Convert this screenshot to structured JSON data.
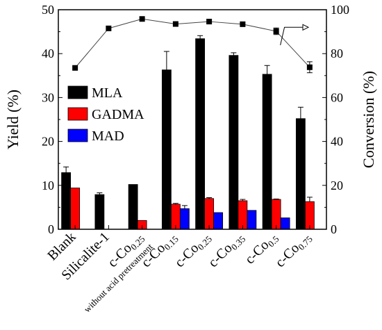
{
  "chart_data": {
    "type": "bar",
    "ylabel": "Yield (%)",
    "y2label": "Conversion (%)",
    "ylim": [
      0,
      50
    ],
    "y2lim": [
      0,
      100
    ],
    "yticks": [
      "0",
      "10",
      "20",
      "30",
      "40",
      "50"
    ],
    "y2ticks": [
      "0",
      "20",
      "40",
      "60",
      "80",
      "100"
    ],
    "categories": [
      {
        "main": "Blank",
        "sub": "",
        "tail": "",
        "line2": ""
      },
      {
        "main": "Silicalite-1",
        "sub": "",
        "tail": "",
        "line2": ""
      },
      {
        "main": "c-Co",
        "sub": "0.25",
        "tail": "",
        "line2": "without acid pretreatment"
      },
      {
        "main": "c-Co",
        "sub": "0.15",
        "tail": "",
        "line2": ""
      },
      {
        "main": "c-Co",
        "sub": "0.25",
        "tail": "",
        "line2": ""
      },
      {
        "main": "c-Co",
        "sub": "0.35",
        "tail": "",
        "line2": ""
      },
      {
        "main": "c-Co",
        "sub": "0.5",
        "tail": "",
        "line2": ""
      },
      {
        "main": "c-Co",
        "sub": "0.75",
        "tail": "",
        "line2": ""
      }
    ],
    "series": [
      {
        "name": "MLA",
        "color": "#000000",
        "values": [
          12.9,
          7.9,
          10.2,
          36.3,
          43.4,
          39.6,
          35.3,
          25.2
        ],
        "errors": [
          1.3,
          0.4,
          0,
          4.2,
          0.7,
          0.6,
          2.0,
          2.6
        ]
      },
      {
        "name": "GADMA",
        "color": "#ff0000",
        "values": [
          9.4,
          0,
          2.0,
          5.7,
          7.0,
          6.5,
          6.8,
          6.3
        ],
        "errors": [
          0,
          0,
          0,
          0.2,
          0.2,
          0.3,
          0.1,
          1.0
        ]
      },
      {
        "name": "MAD",
        "color": "#0000ff",
        "values": [
          0,
          0,
          0,
          4.7,
          3.8,
          4.3,
          2.6,
          0
        ],
        "errors": [
          0,
          0,
          0,
          0.7,
          0,
          0,
          0,
          0
        ]
      }
    ],
    "conversion": {
      "name": "Conversion",
      "values": [
        73.5,
        91.5,
        95.8,
        93.5,
        94.6,
        93.4,
        90.2,
        73.8
      ],
      "errors": [
        0,
        0,
        0,
        0,
        0,
        0,
        1.5,
        2.5
      ],
      "color": "#000000"
    }
  }
}
